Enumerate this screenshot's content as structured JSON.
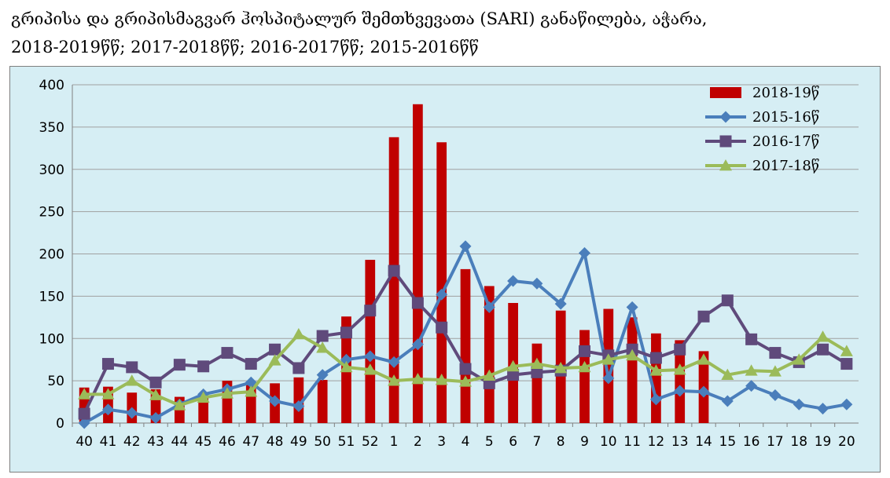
{
  "title": {
    "line1": "გრიპისა და გრიპისმაგვარ ჰოსპიტალურ  შემთხვევათა (SARI) განაწილება, აჭარა,",
    "line2": "2018-2019წწ; 2017-2018წწ; 2016-2017წწ;  2015-2016წწ"
  },
  "colors": {
    "bars": "#c00000",
    "s2015": "#4a7ebb",
    "s2016": "#5f4a7b",
    "s2017": "#9bbb59",
    "plot_bg": "#d6eef4",
    "grid": "#a0a0a0"
  },
  "chart_data": {
    "type": "bar",
    "title": "",
    "xlabel": "",
    "ylabel": "",
    "ylim": [
      0,
      400
    ],
    "yticks": [
      0,
      50,
      100,
      150,
      200,
      250,
      300,
      350,
      400
    ],
    "legend_position": "top-right",
    "grid": "horizontal",
    "categories": [
      "40",
      "41",
      "42",
      "43",
      "44",
      "45",
      "46",
      "47",
      "48",
      "49",
      "50",
      "51",
      "52",
      "1",
      "2",
      "3",
      "4",
      "5",
      "6",
      "7",
      "8",
      "9",
      "10",
      "11",
      "12",
      "13",
      "14",
      "15",
      "16",
      "17",
      "18",
      "19",
      "20"
    ],
    "bar_series": {
      "name": "2018-19წ",
      "values": [
        42,
        43,
        36,
        40,
        31,
        30,
        50,
        48,
        47,
        54,
        51,
        126,
        193,
        338,
        377,
        332,
        182,
        162,
        142,
        94,
        133,
        110,
        135,
        125,
        106,
        98,
        85,
        null,
        null,
        null,
        null,
        null,
        null
      ]
    },
    "line_series": [
      {
        "name": "2015-16წ",
        "marker": "diamond",
        "values": [
          0,
          16,
          12,
          6,
          22,
          34,
          40,
          48,
          26,
          20,
          57,
          75,
          79,
          72,
          93,
          152,
          209,
          137,
          168,
          165,
          141,
          201,
          53,
          137,
          28,
          38,
          37,
          26,
          44,
          33,
          22,
          17,
          22
        ]
      },
      {
        "name": "2016-17წ",
        "marker": "square",
        "values": [
          11,
          70,
          66,
          48,
          69,
          67,
          83,
          70,
          87,
          65,
          103,
          107,
          133,
          180,
          142,
          113,
          64,
          47,
          57,
          60,
          62,
          85,
          80,
          87,
          77,
          87,
          126,
          145,
          99,
          83,
          72,
          87,
          70
        ]
      },
      {
        "name": "2017-18წ",
        "marker": "triangle",
        "values": [
          34,
          34,
          50,
          33,
          21,
          30,
          35,
          37,
          74,
          105,
          89,
          66,
          63,
          50,
          52,
          51,
          49,
          56,
          67,
          70,
          65,
          66,
          75,
          80,
          62,
          63,
          75,
          57,
          62,
          61,
          75,
          102,
          85
        ]
      }
    ]
  }
}
